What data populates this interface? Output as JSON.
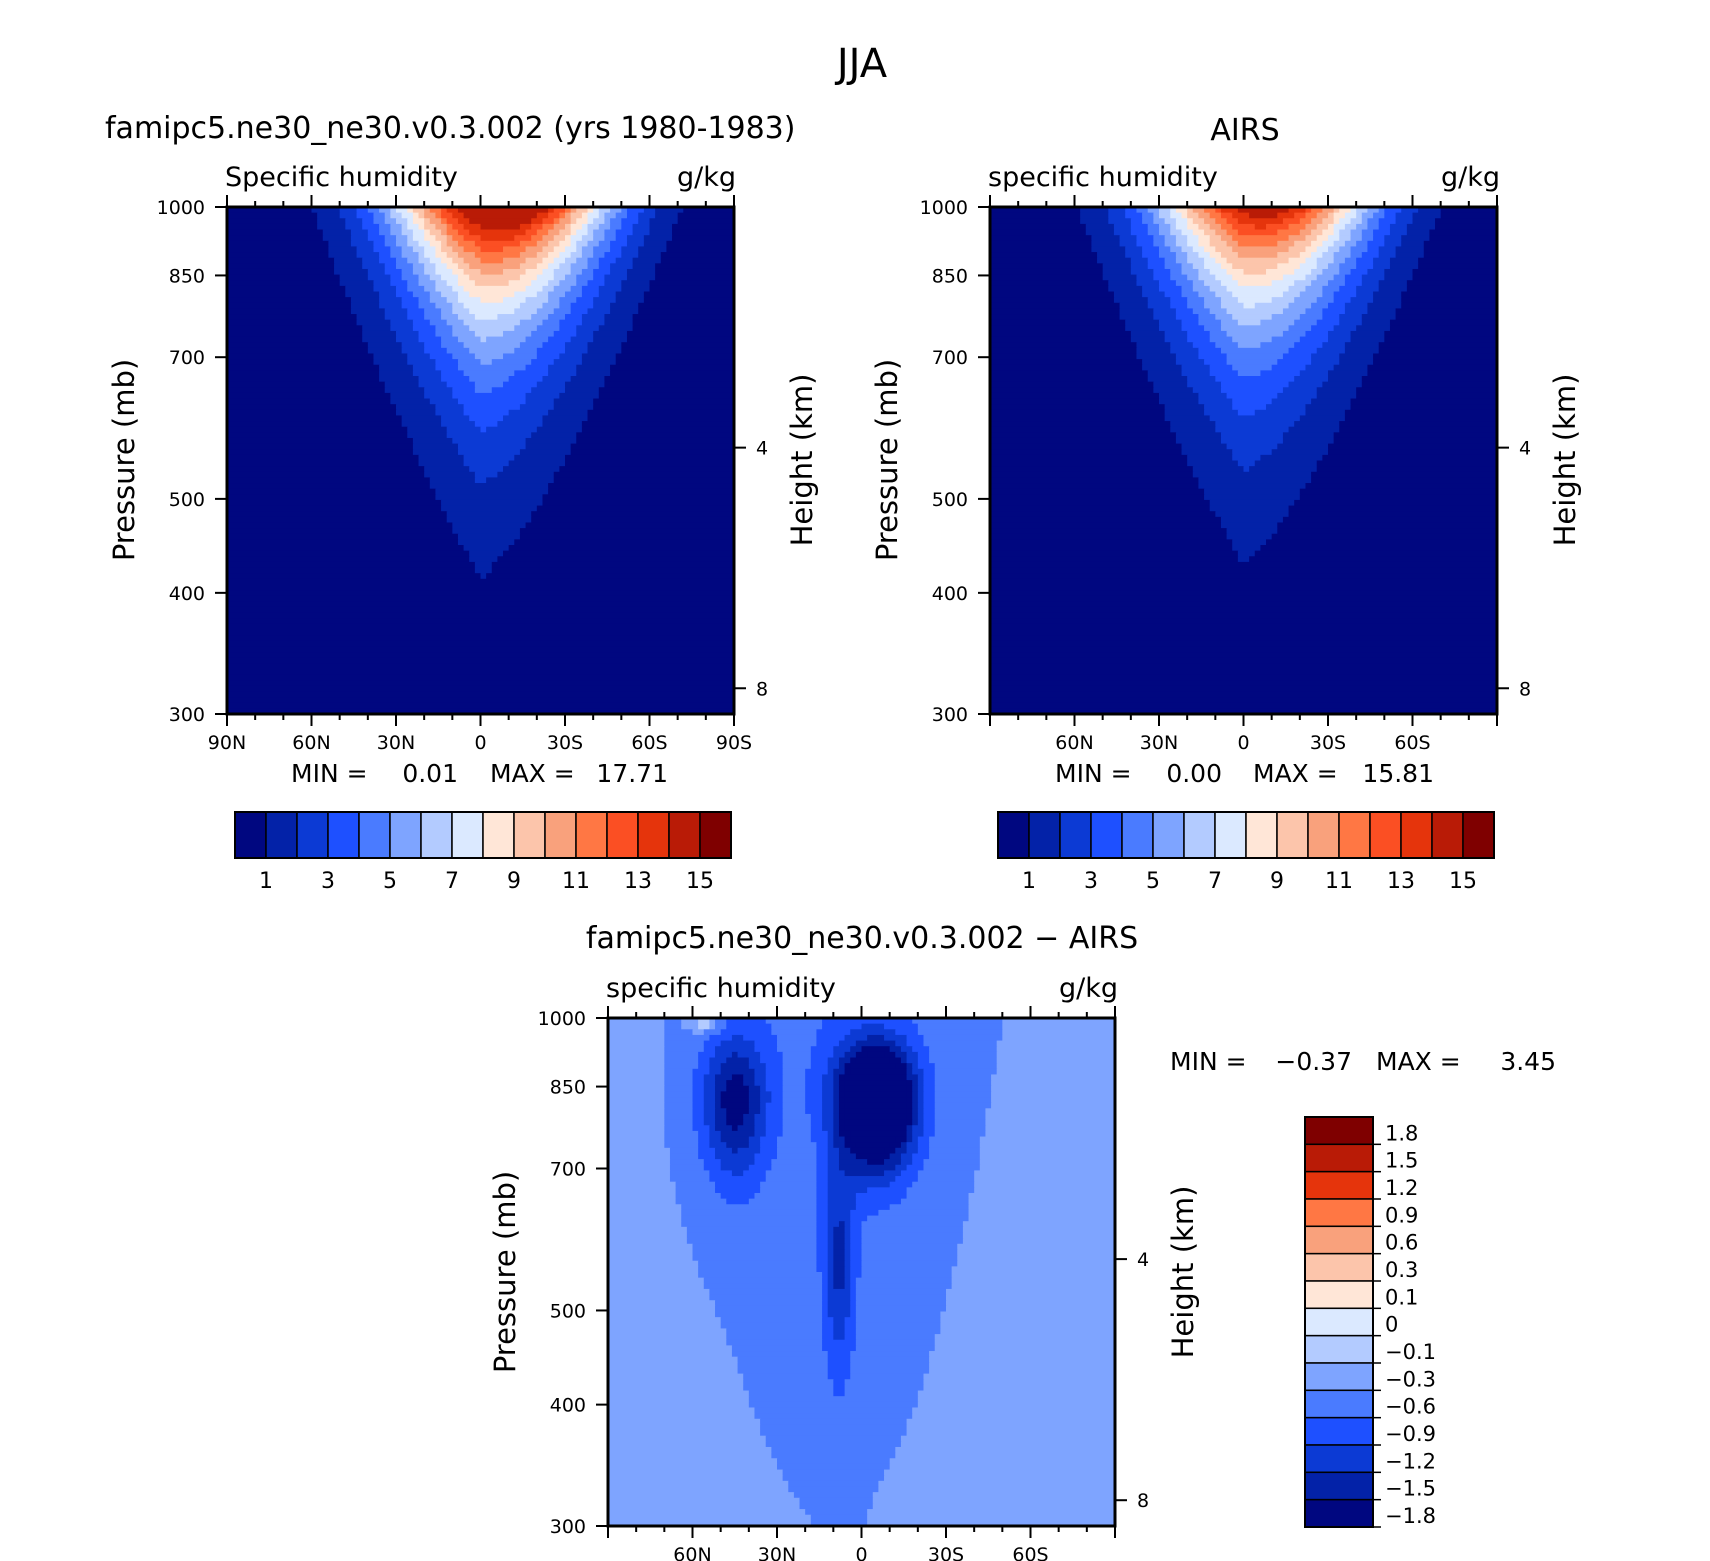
{
  "figure": {
    "title": "JJA"
  },
  "chart_data": [
    {
      "type": "contour",
      "id": "model",
      "title": "famipc5.ne30_ne30.v0.3.002 (yrs 1980-1983)",
      "subtitle_left": "Specific humidity",
      "subtitle_right": "g/kg",
      "ylabel": "Pressure (mb)",
      "ylabel_right": "Height (km)",
      "x_ticks": [
        "90N",
        "60N",
        "30N",
        "0",
        "30S",
        "60S",
        "90S"
      ],
      "x_tick_values": [
        90,
        60,
        30,
        0,
        -30,
        -60,
        -90
      ],
      "xlim": [
        90,
        -90
      ],
      "y_ticks": [
        "300",
        "400",
        "500",
        "700",
        "850",
        "1000"
      ],
      "y_tick_values": [
        300,
        400,
        500,
        700,
        850,
        1000
      ],
      "ylim": [
        1000,
        300
      ],
      "height_ticks": [
        "8",
        "4"
      ],
      "height_tick_values": [
        8,
        4
      ],
      "stats": {
        "min_label": "MIN =",
        "min": "0.01",
        "max_label": "MAX =",
        "max": "17.71"
      },
      "peak": {
        "lat": -8,
        "p": 1000,
        "value": 17.71
      },
      "colorbar": {
        "orientation": "horizontal",
        "labels": [
          "1",
          "3",
          "5",
          "7",
          "9",
          "11",
          "13",
          "15"
        ],
        "colors": [
          "#000780",
          "#0322a8",
          "#0c3ad4",
          "#1e50ff",
          "#4a7bff",
          "#7ea4ff",
          "#b3cbff",
          "#dbe9ff",
          "#ffe6d7",
          "#fcc5ab",
          "#f9a17c",
          "#ff7744",
          "#fb4f23",
          "#e5340c",
          "#b91b06",
          "#7f0000"
        ]
      }
    },
    {
      "type": "contour",
      "id": "obs",
      "title": "AIRS",
      "subtitle_left": "specific humidity",
      "subtitle_right": "g/kg",
      "ylabel": "Pressure (mb)",
      "ylabel_right": "Height (km)",
      "x_ticks": [
        "60N",
        "30N",
        "0",
        "30S",
        "60S"
      ],
      "x_tick_values": [
        60,
        30,
        0,
        -30,
        -60
      ],
      "xlim": [
        90,
        -90
      ],
      "y_ticks": [
        "300",
        "400",
        "500",
        "700",
        "850",
        "1000"
      ],
      "y_tick_values": [
        300,
        400,
        500,
        700,
        850,
        1000
      ],
      "ylim": [
        1000,
        300
      ],
      "height_ticks": [
        "8",
        "4"
      ],
      "height_tick_values": [
        8,
        4
      ],
      "stats": {
        "min_label": "MIN =",
        "min": "0.00",
        "max_label": "MAX =",
        "max": "15.81"
      },
      "peak": {
        "lat": -8,
        "p": 1000,
        "value": 15.81
      },
      "colorbar": {
        "orientation": "horizontal",
        "labels": [
          "1",
          "3",
          "5",
          "7",
          "9",
          "11",
          "13",
          "15"
        ],
        "colors": [
          "#000780",
          "#0322a8",
          "#0c3ad4",
          "#1e50ff",
          "#4a7bff",
          "#7ea4ff",
          "#b3cbff",
          "#dbe9ff",
          "#ffe6d7",
          "#fcc5ab",
          "#f9a17c",
          "#ff7744",
          "#fb4f23",
          "#e5340c",
          "#b91b06",
          "#7f0000"
        ]
      }
    },
    {
      "type": "contour",
      "id": "diff",
      "title": "famipc5.ne30_ne30.v0.3.002 − AIRS",
      "subtitle_left": "specific humidity",
      "subtitle_right": "g/kg",
      "ylabel": "Pressure (mb)",
      "ylabel_right": "Height (km)",
      "x_ticks": [
        "60N",
        "30N",
        "0",
        "30S",
        "60S"
      ],
      "x_tick_values": [
        60,
        30,
        0,
        -30,
        -60
      ],
      "xlim": [
        90,
        -90
      ],
      "y_ticks": [
        "300",
        "400",
        "500",
        "700",
        "850",
        "1000"
      ],
      "y_tick_values": [
        300,
        400,
        500,
        700,
        850,
        1000
      ],
      "ylim": [
        1000,
        300
      ],
      "height_ticks": [
        "8",
        "4"
      ],
      "height_tick_values": [
        8,
        4
      ],
      "stats": {
        "min_label": "MIN =",
        "min": "−0.37",
        "max_label": "MAX =",
        "max": "3.45"
      },
      "colorbar": {
        "orientation": "vertical",
        "labels": [
          "1.8",
          "1.5",
          "1.2",
          "0.9",
          "0.6",
          "0.3",
          "0.1",
          "0",
          "−0.1",
          "−0.3",
          "−0.6",
          "−0.9",
          "−1.2",
          "−1.5",
          "−1.8"
        ],
        "colors": [
          "#7f0000",
          "#b91b06",
          "#e5340c",
          "#ff7744",
          "#f9a17c",
          "#fcc5ab",
          "#ffe6d7",
          "#dbe9ff",
          "#b3cbff",
          "#7ea4ff",
          "#4a7bff",
          "#1e50ff",
          "#0c3ad4",
          "#0322a8",
          "#000780"
        ]
      }
    }
  ]
}
